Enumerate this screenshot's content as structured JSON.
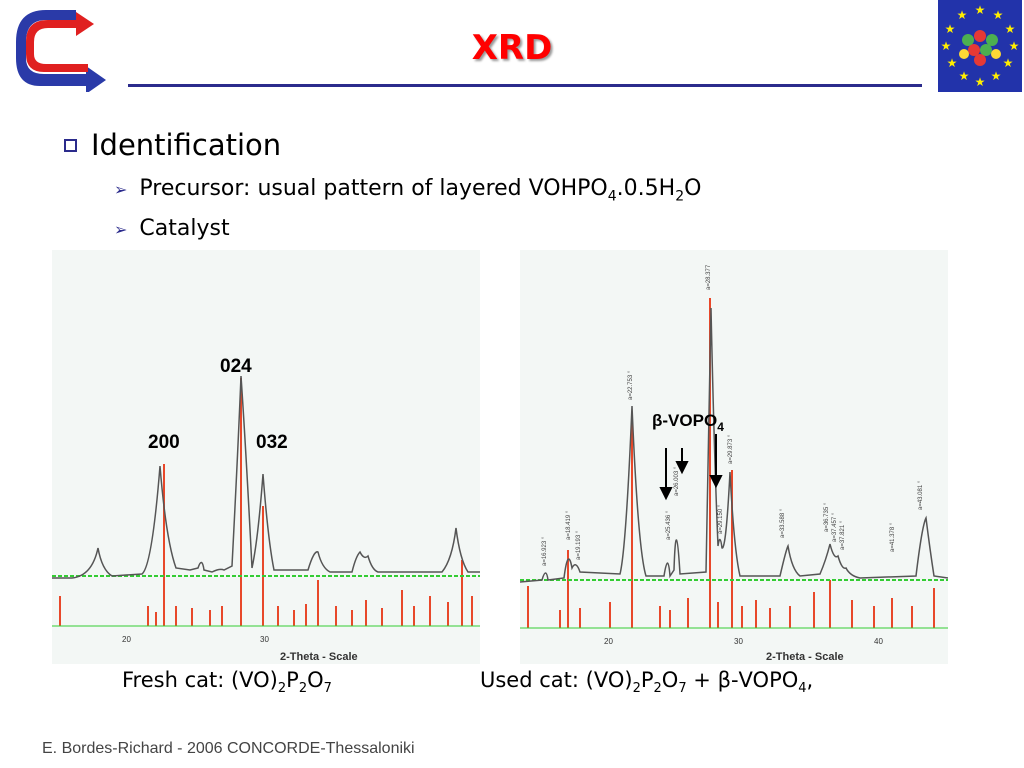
{
  "title": "XRD",
  "bullets": {
    "level1": "Identification",
    "precursor": {
      "text": "Precursor: usual pattern of layered VOHPO",
      "sub1": "4",
      "mid": ".0.5H",
      "sub2": "2",
      "end": "O"
    },
    "catalyst": "Catalyst"
  },
  "left_panel": {
    "peak_labels": [
      "200",
      "024",
      "032"
    ],
    "axis_title": "2-Theta - Scale",
    "ticks": [
      "20",
      "30"
    ]
  },
  "right_panel": {
    "vopo_label": {
      "beta": "β",
      "text": "-VOPO",
      "sub": "4"
    },
    "axis_title": "2-Theta - Scale",
    "ticks": [
      "20",
      "30",
      "40"
    ],
    "peak_tags": [
      "a=16.923 °",
      "a=18.419 °",
      "a=19.193 °",
      "a=22.753 °",
      "a=25.436 °",
      "a=26.003 °",
      "a=28.377",
      "a=29.150 °",
      "a=29.873 °",
      "a=33.588 °",
      "a=36.735 °",
      "a=37.457 °",
      "a=37.821 °",
      "a=41.378 °",
      "a=43.081 °"
    ]
  },
  "captions": {
    "fresh": {
      "a": "Fresh cat: (VO)",
      "s1": "2",
      "b": "P",
      "s2": "2",
      "c": "O",
      "s3": "7"
    },
    "used": {
      "a": "Used cat: (VO)",
      "s1": "2",
      "b": "P",
      "s2": "2",
      "c": "O",
      "s3": "7",
      "d": " + ",
      "beta": "β",
      "e": "-VOPO",
      "s4": "4",
      "f": ","
    }
  },
  "footer": "E. Bordes-Richard - 2006 CONCORDE-Thessaloniki",
  "colors": {
    "title": "#ff0000",
    "rule": "#2b2b8c",
    "trace": "#555555",
    "reference": "#e8482a",
    "baseline": "#33cc33"
  },
  "icons": [
    "concorde-arrows-logo",
    "eu-stars-logo"
  ]
}
